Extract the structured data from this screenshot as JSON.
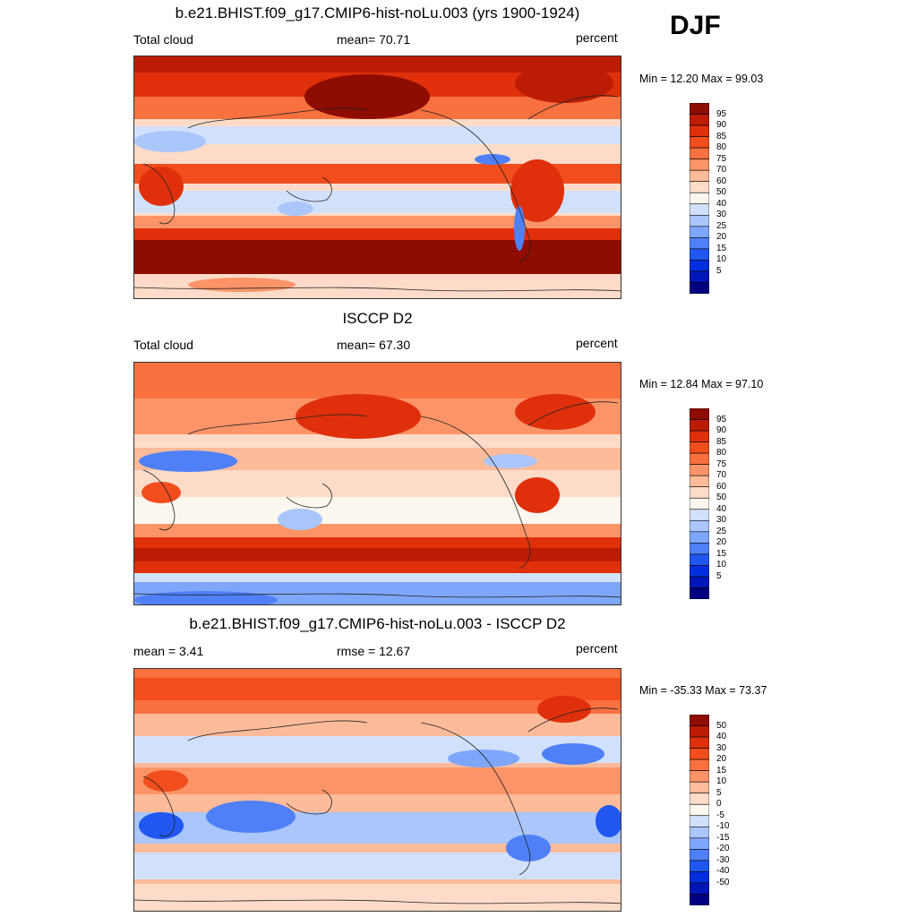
{
  "season": "DJF",
  "palette_abs": [
    "#000080",
    "#0016b8",
    "#002fe0",
    "#1f57f0",
    "#4f80f8",
    "#7ea6fb",
    "#aac6fb",
    "#d2e1fb",
    "#fbf7ee",
    "#fddbc8",
    "#fdbb9a",
    "#fc9468",
    "#f9713f",
    "#f24d1c",
    "#e0300b",
    "#bd1c04",
    "#8e0c00"
  ],
  "palette_diff": [
    "#000080",
    "#0016b8",
    "#002fe0",
    "#1f57f0",
    "#4f80f8",
    "#7ea6fb",
    "#aac6fb",
    "#d2e1fb",
    "#fbf7ee",
    "#fddbc8",
    "#fdbb9a",
    "#fc9468",
    "#f9713f",
    "#f24d1c",
    "#e0300b",
    "#bd1c04",
    "#8e0c00"
  ],
  "panels": [
    {
      "title": "b.e21.BHIST.f09_g17.CMIP6-hist-noLu.003 (yrs 1900-1924)",
      "left_label": "Total cloud",
      "center_label": "mean=  70.71",
      "right_label": "percent",
      "minmax": "Min =  12.20 Max =  99.03",
      "colorbar_levels": [
        "95",
        "90",
        "85",
        "80",
        "75",
        "70",
        "60",
        "50",
        "40",
        "30",
        "25",
        "20",
        "15",
        "10",
        "5"
      ]
    },
    {
      "title": "ISCCP D2",
      "left_label": "Total cloud",
      "center_label": "mean=  67.30",
      "right_label": "percent",
      "minmax": "Min =  12.84 Max =  97.10",
      "colorbar_levels": [
        "95",
        "90",
        "85",
        "80",
        "75",
        "70",
        "60",
        "50",
        "40",
        "30",
        "25",
        "20",
        "15",
        "10",
        "5"
      ]
    },
    {
      "title": "b.e21.BHIST.f09_g17.CMIP6-hist-noLu.003 - ISCCP D2",
      "left_label": "mean =   3.41",
      "center_label": "rmse =  12.67",
      "right_label": "percent",
      "minmax": "Min = -35.33 Max =  73.37",
      "colorbar_levels": [
        "50",
        "40",
        "30",
        "20",
        "15",
        "10",
        "5",
        "0",
        "-5",
        "-10",
        "-15",
        "-20",
        "-30",
        "-40",
        "-50"
      ]
    }
  ]
}
